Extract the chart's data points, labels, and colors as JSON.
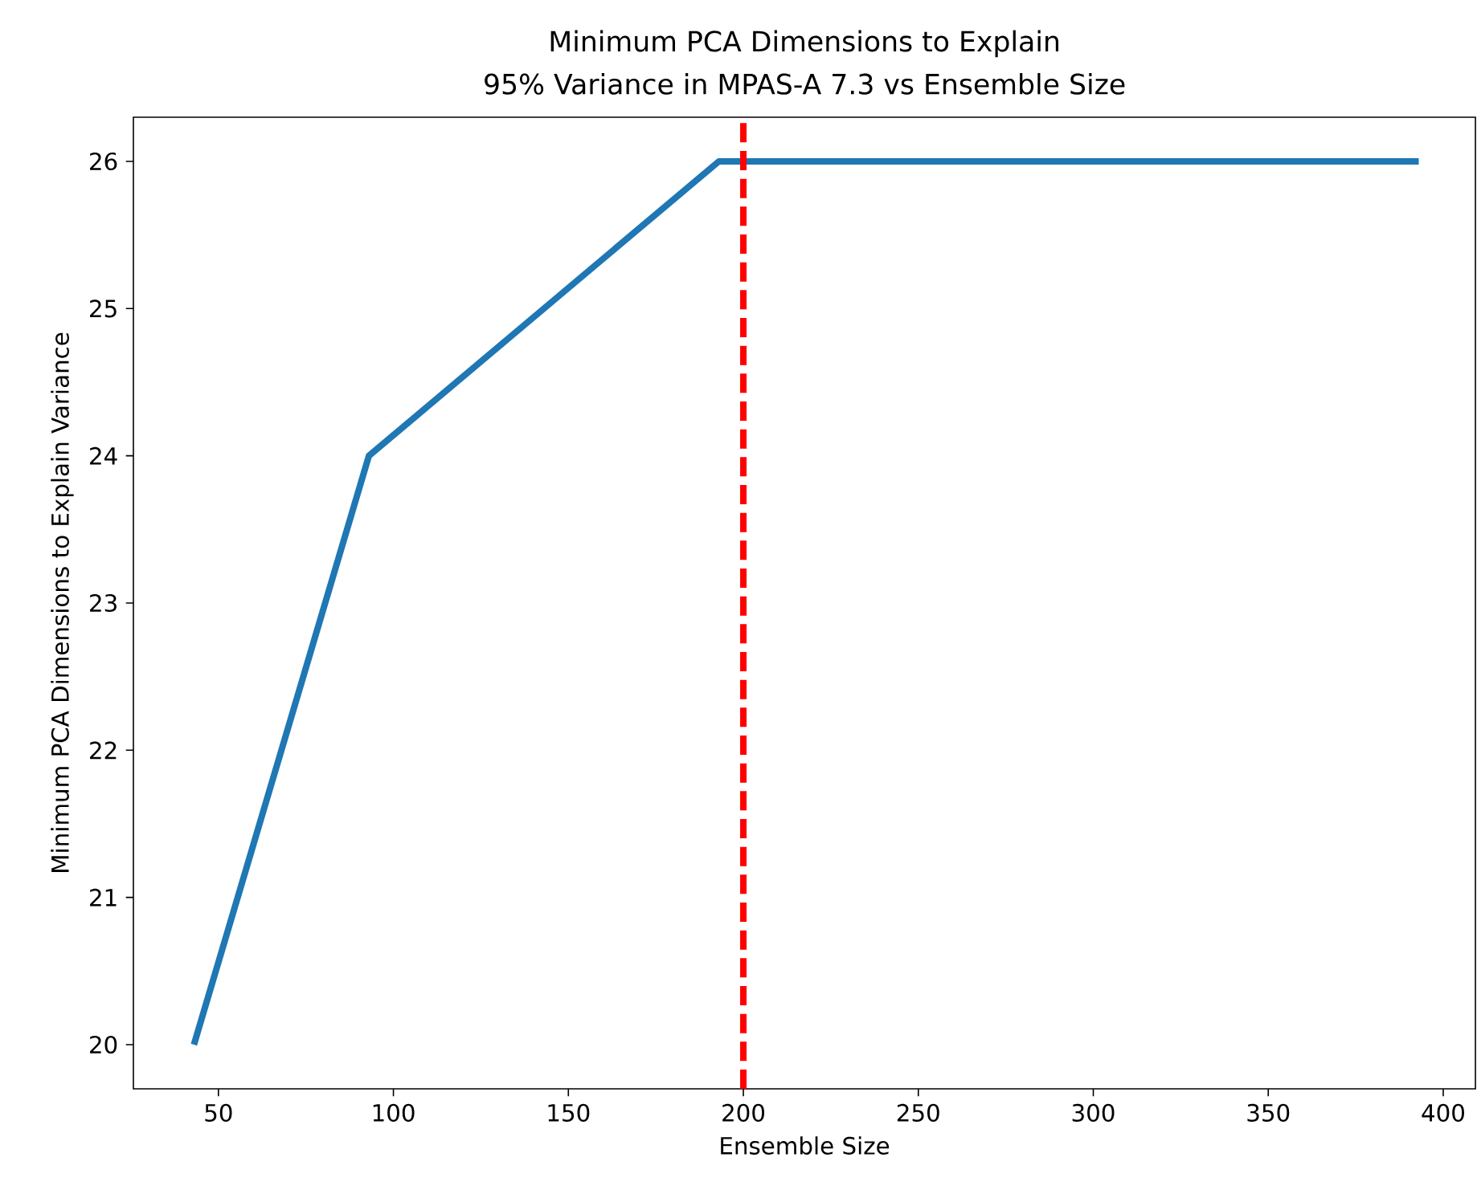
{
  "chart_data": {
    "type": "line",
    "title": "Minimum PCA Dimensions to Explain",
    "subtitle": "95% Variance in MPAS-A 7.3 vs Ensemble Size",
    "xlabel": "Ensemble Size",
    "ylabel": "Minimum PCA Dimensions to Explain Variance",
    "x": [
      43,
      93,
      193,
      293,
      393
    ],
    "series": [
      {
        "color": "#1f77b4",
        "values": [
          20,
          24,
          26,
          26,
          26
        ]
      }
    ],
    "xlim": [
      25.7,
      409.2
    ],
    "ylim": [
      19.7,
      26.3
    ],
    "xticks": [
      50,
      100,
      150,
      200,
      250,
      300,
      350,
      400
    ],
    "yticks": [
      20,
      21,
      22,
      23,
      24,
      25,
      26
    ],
    "ref_lines": [
      {
        "axis": "x",
        "value": 200,
        "color": "#ff0000",
        "line_style": "dashed"
      }
    ],
    "grid": false
  }
}
